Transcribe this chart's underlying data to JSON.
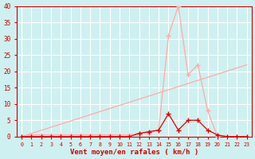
{
  "bg_color": "#cff0f0",
  "grid_color": "#ffffff",
  "xlabel": "Vent moyen/en rafales ( km/h )",
  "xlabel_color": "#cc0000",
  "tick_color": "#cc0000",
  "xlim": [
    -0.5,
    23.5
  ],
  "ylim": [
    0,
    40
  ],
  "yticks": [
    0,
    5,
    10,
    15,
    20,
    25,
    30,
    35,
    40
  ],
  "xticks": [
    0,
    1,
    2,
    3,
    4,
    5,
    6,
    7,
    8,
    9,
    10,
    11,
    12,
    13,
    14,
    15,
    16,
    17,
    18,
    19,
    20,
    21,
    22,
    23
  ],
  "line_rafales_x": [
    0,
    1,
    2,
    3,
    4,
    5,
    6,
    7,
    8,
    9,
    10,
    11,
    12,
    13,
    14,
    15,
    16,
    17,
    18,
    19,
    20,
    21,
    22,
    23
  ],
  "line_rafales_y": [
    0,
    0.5,
    0.5,
    0.5,
    0.5,
    0.5,
    0.5,
    0.5,
    0.5,
    0.5,
    0.5,
    0.5,
    1,
    1,
    2,
    31,
    40,
    19,
    22,
    8,
    0,
    0,
    0,
    0
  ],
  "line_moyen_x": [
    0,
    1,
    2,
    3,
    4,
    5,
    6,
    7,
    8,
    9,
    10,
    11,
    12,
    13,
    14,
    15,
    16,
    17,
    18,
    19,
    20,
    21,
    22,
    23
  ],
  "line_moyen_y": [
    0,
    0,
    0,
    0,
    0,
    0,
    0,
    0,
    0,
    0,
    0,
    0,
    1,
    1.5,
    2,
    7,
    2,
    5,
    5,
    2,
    0.5,
    0,
    0,
    0
  ],
  "line_trend_x": [
    0,
    23
  ],
  "line_trend_y": [
    0,
    22
  ],
  "line_rafales_color": "#ffaaaa",
  "line_moyen_color": "#dd0000",
  "line_trend_color": "#ffaaaa",
  "marker_rafales": "+",
  "marker_moyen": "+",
  "marker_size": 4
}
